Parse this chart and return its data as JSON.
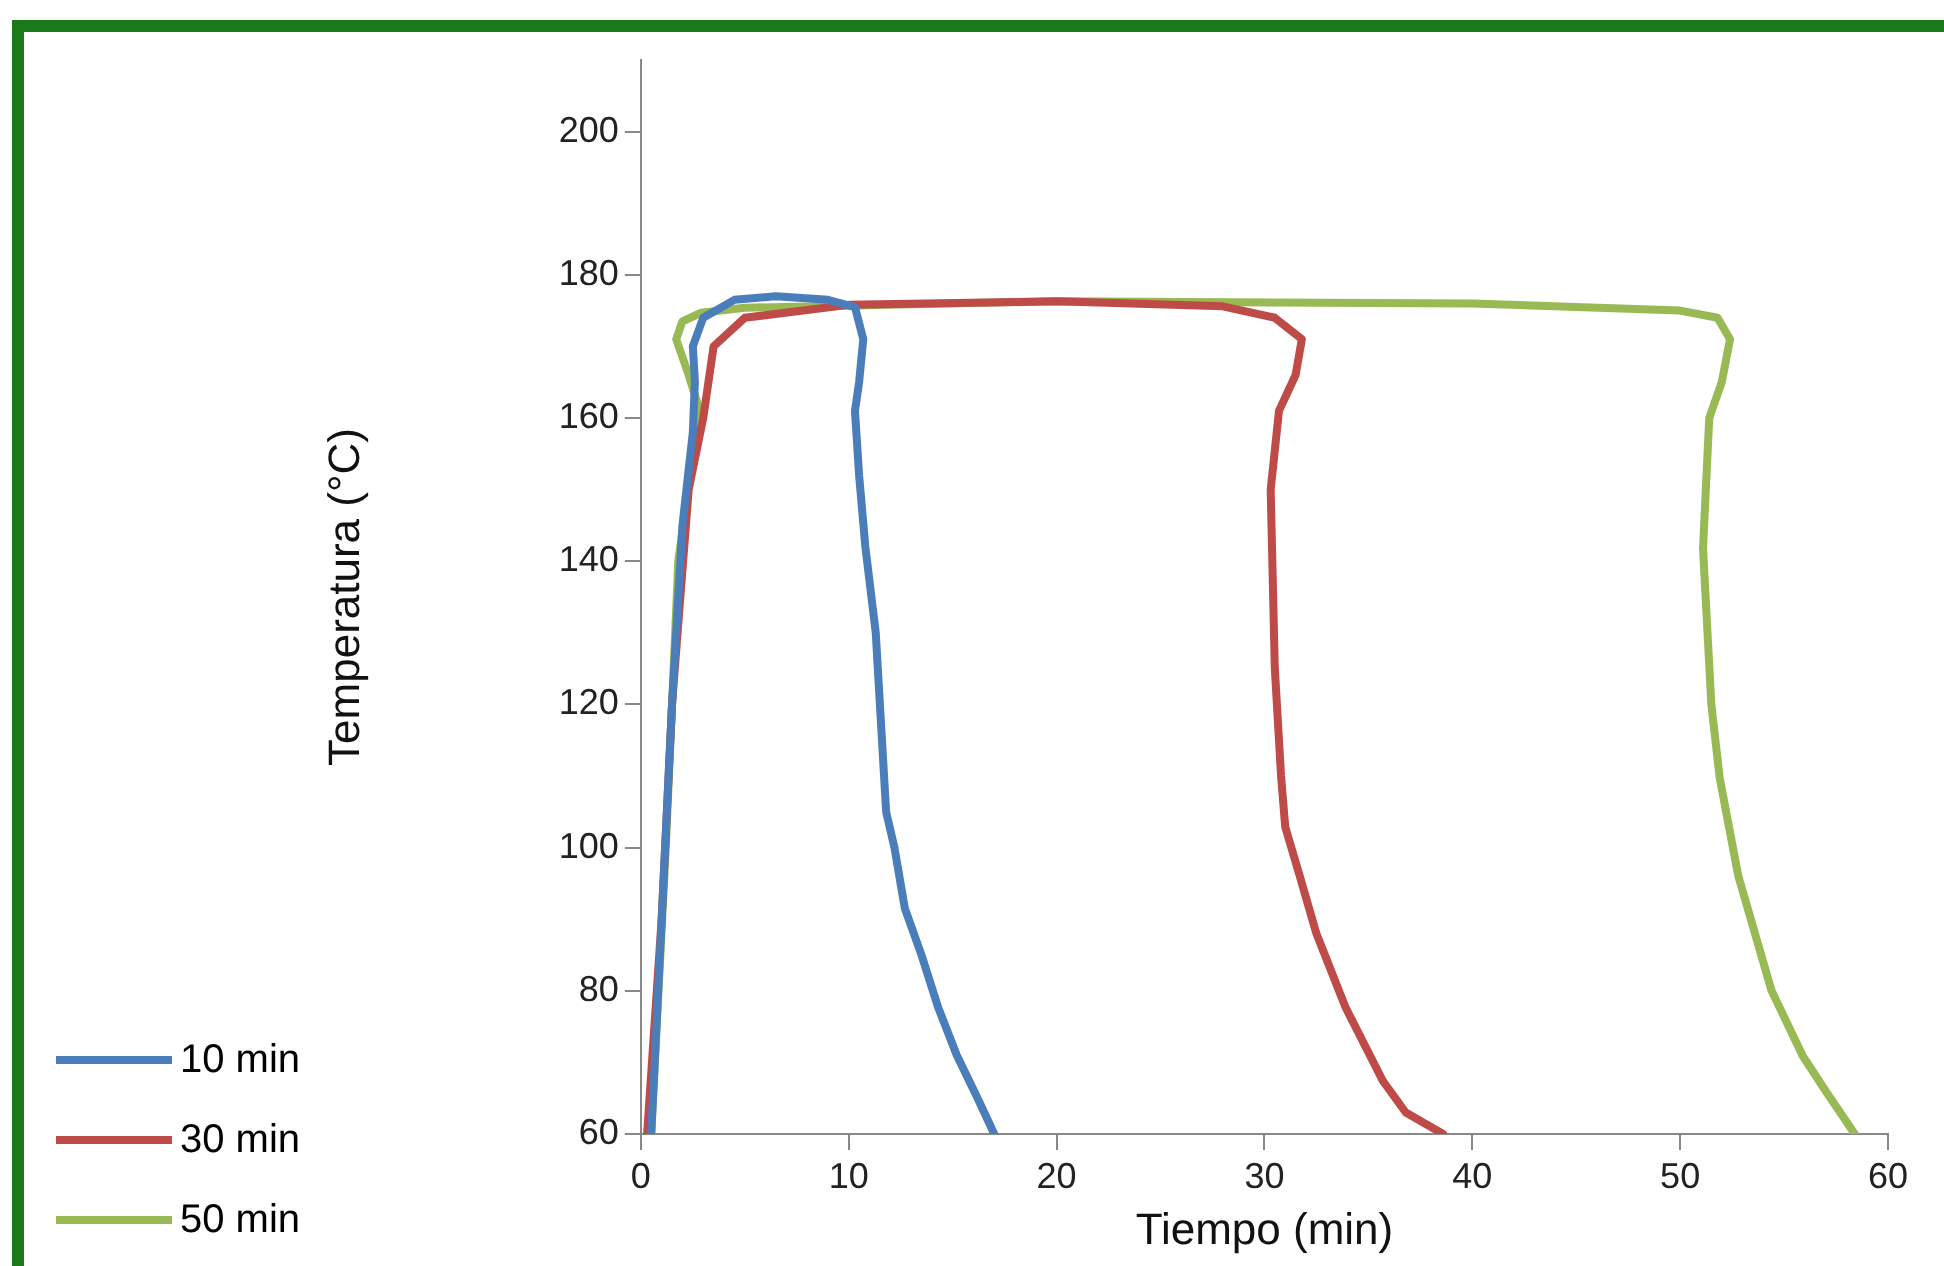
{
  "chart_data": {
    "type": "line",
    "xlabel": "Tiempo (min)",
    "ylabel": "Temperatura (°C)",
    "xlim": [
      0,
      60
    ],
    "xticks": [
      0,
      10,
      20,
      30,
      40,
      50,
      60
    ],
    "ylim": [
      60,
      210
    ],
    "yticks": [
      60,
      80,
      100,
      120,
      140,
      160,
      180,
      200
    ],
    "grid": false,
    "legend": "bottom left",
    "marker": "none",
    "line_style": "solid",
    "series": [
      {
        "name": "10 min",
        "color": "#4a7ebb",
        "x": [
          0.5,
          1.0,
          1.5,
          2.0,
          2.5,
          2.6,
          2.5,
          3.0,
          4.5,
          6.5,
          9.0,
          10.3,
          10.7,
          10.5,
          10.3,
          10.5,
          10.8,
          11.3,
          11.6,
          11.8,
          12.2,
          12.7,
          13.5,
          14.3,
          15.2,
          16.2,
          17.0
        ],
        "values": [
          60,
          90,
          120,
          145,
          158,
          165,
          170,
          174,
          176.5,
          177,
          176.5,
          175.5,
          171,
          165,
          161,
          152,
          142,
          130,
          115,
          105,
          100,
          91.5,
          85,
          77.7,
          71,
          65,
          60
        ]
      },
      {
        "name": "30 min",
        "color": "#be4b48",
        "x": [
          0.3,
          1.0,
          1.5,
          2.3,
          3.0,
          3.5,
          5.0,
          10,
          20,
          28,
          30.5,
          31.8,
          31.5,
          30.7,
          30.3,
          30.5,
          30.8,
          31.0,
          31.7,
          32.5,
          33.9,
          35.7,
          36.8,
          38.6
        ],
        "values": [
          60,
          90,
          120,
          150,
          160,
          170,
          174,
          175.8,
          176.3,
          175.6,
          174,
          171,
          166,
          161,
          150,
          125,
          110,
          102.9,
          96,
          88,
          77.7,
          67.4,
          63,
          60
        ]
      },
      {
        "name": "50 min",
        "color": "#98b954",
        "x": [
          0.5,
          1.2,
          1.8,
          2.5,
          2.9,
          2.3,
          1.7,
          2.0,
          2.9,
          5,
          20,
          40,
          50,
          51.8,
          52.4,
          52.0,
          51.4,
          51.1,
          51.5,
          51.9,
          52.8,
          54.4,
          55.9,
          57.0,
          58.4
        ],
        "values": [
          60,
          100,
          140,
          155,
          160.4,
          166,
          171,
          173.5,
          174.7,
          175.4,
          176.3,
          176,
          175,
          174,
          171,
          165,
          160,
          141.8,
          120,
          109.8,
          96,
          80,
          70.9,
          66,
          60
        ]
      }
    ]
  }
}
